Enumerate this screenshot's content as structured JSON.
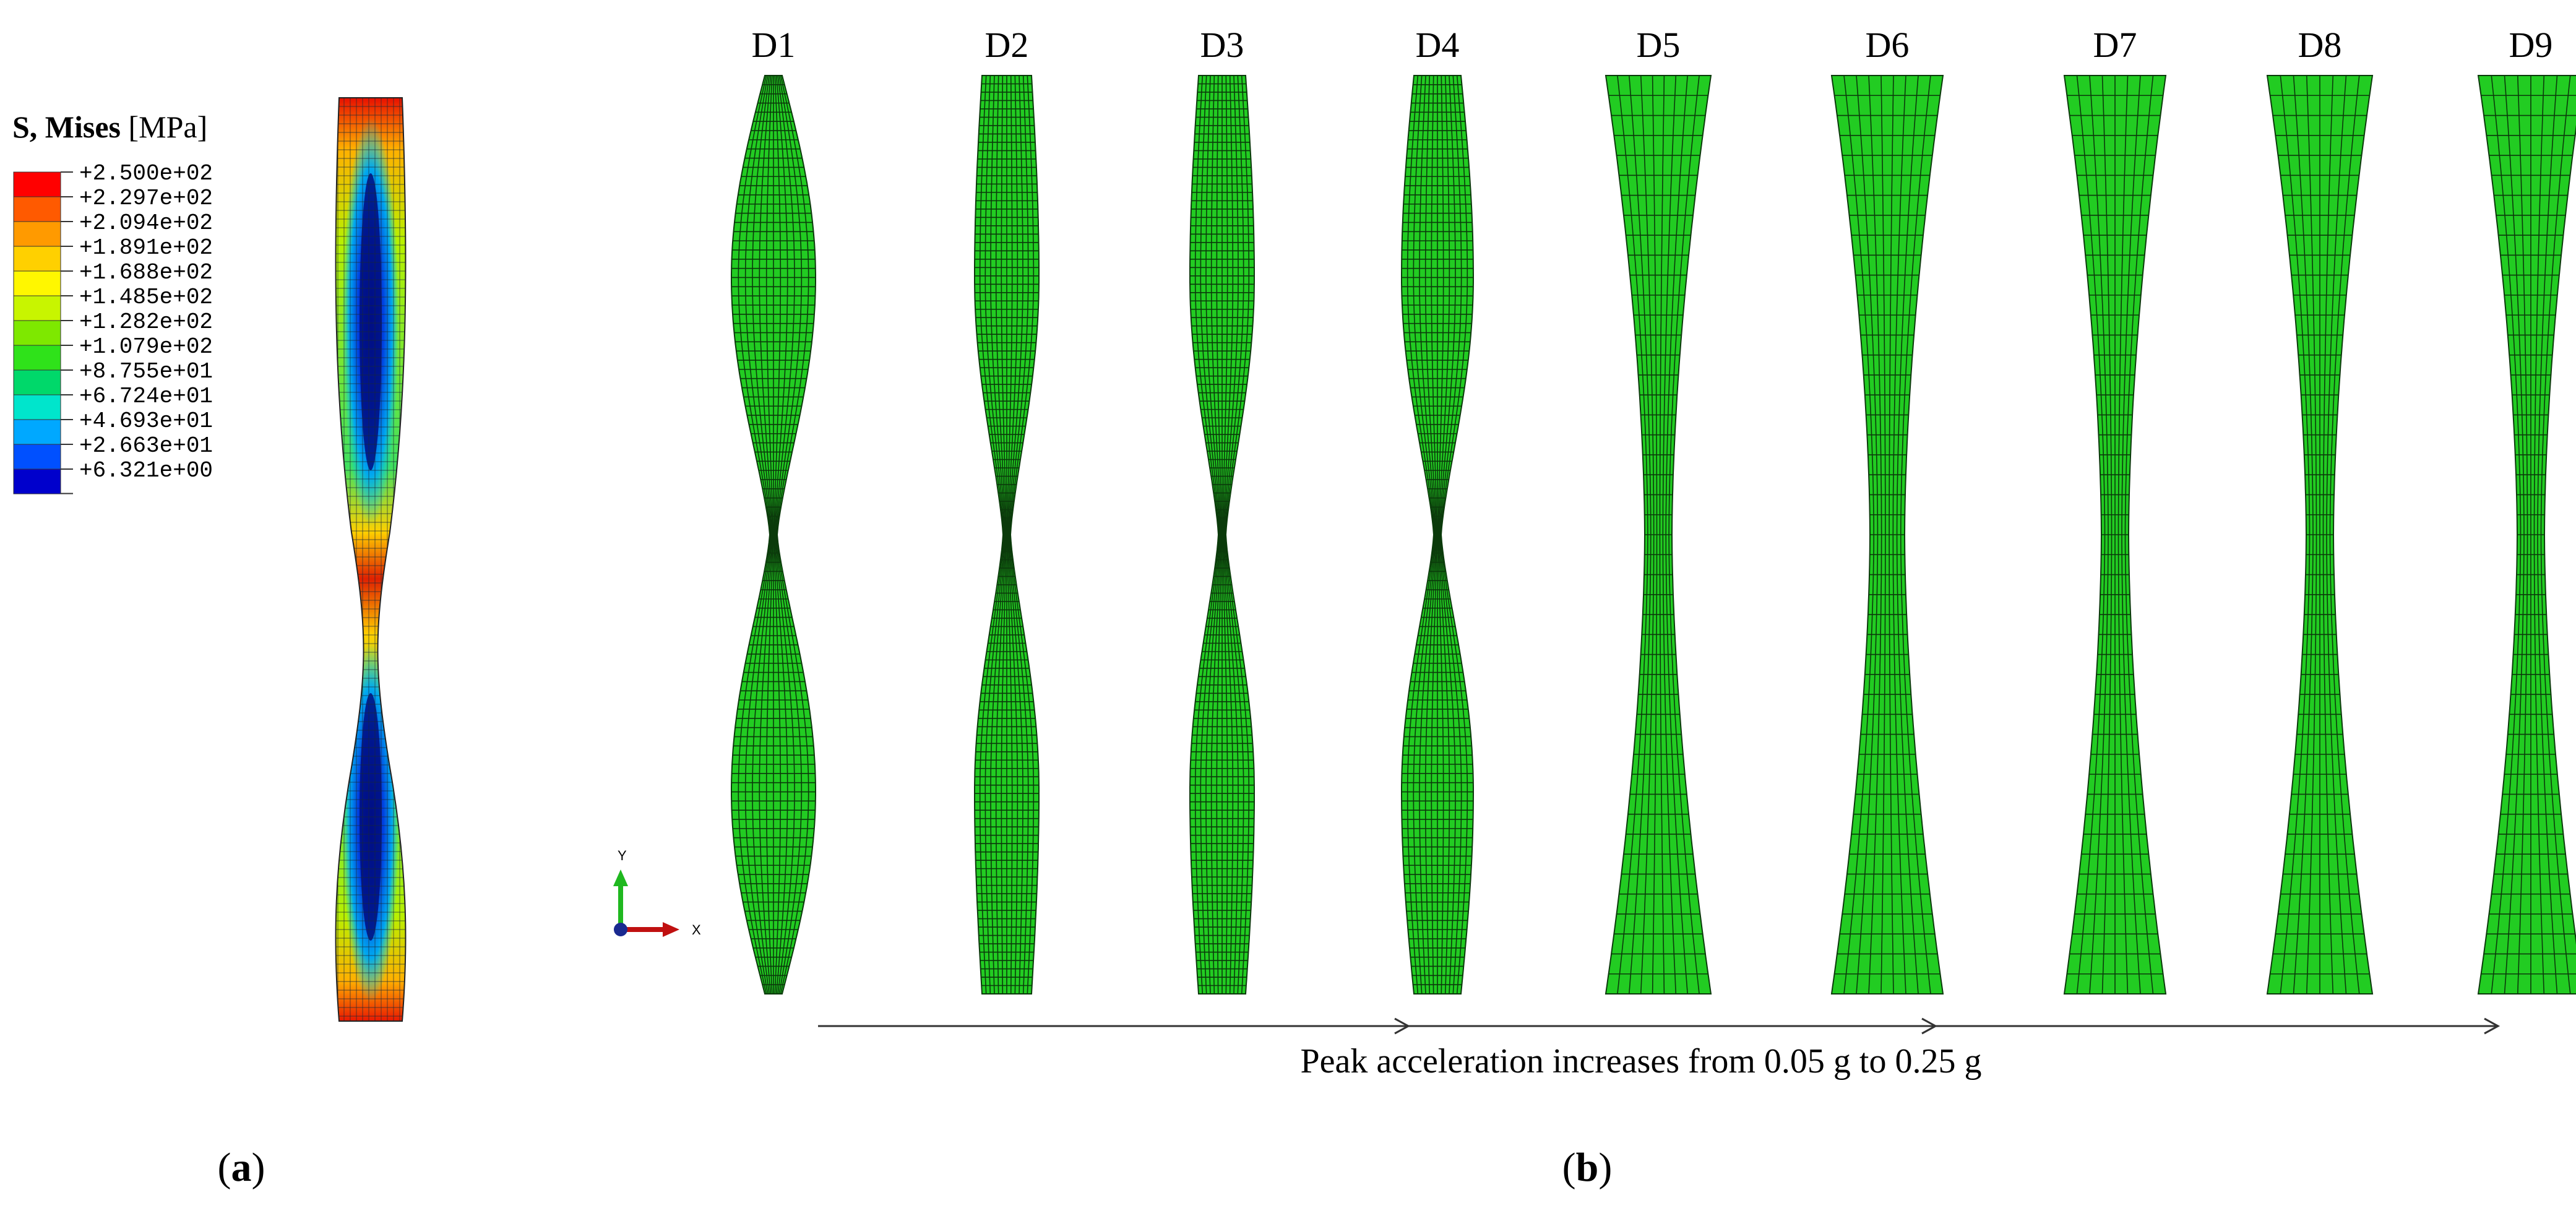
{
  "legend": {
    "title_bold": "S, Mises",
    "title_unit": "[MPa]",
    "entries": [
      {
        "label": "+2.500e+02",
        "color": "#ff0000"
      },
      {
        "label": "+2.297e+02",
        "color": "#ff5a00"
      },
      {
        "label": "+2.094e+02",
        "color": "#ff9a00"
      },
      {
        "label": "+1.891e+02",
        "color": "#ffd000"
      },
      {
        "label": "+1.688e+02",
        "color": "#fff700"
      },
      {
        "label": "+1.485e+02",
        "color": "#c8f500"
      },
      {
        "label": "+1.282e+02",
        "color": "#7ee800"
      },
      {
        "label": "+1.079e+02",
        "color": "#2fe21a"
      },
      {
        "label": "+8.755e+01",
        "color": "#00d86a"
      },
      {
        "label": "+6.724e+01",
        "color": "#00e5cc"
      },
      {
        "label": "+4.693e+01",
        "color": "#00a8ff"
      },
      {
        "label": "+2.663e+01",
        "color": "#0050ff"
      },
      {
        "label": "+6.321e+00",
        "color": "#0000cc"
      }
    ]
  },
  "axes_triad": {
    "y_label": "Y",
    "x_label": "X"
  },
  "specimens": [
    {
      "label": "D1"
    },
    {
      "label": "D2"
    },
    {
      "label": "D3"
    },
    {
      "label": "D4"
    },
    {
      "label": "D5"
    },
    {
      "label": "D6"
    },
    {
      "label": "D7"
    },
    {
      "label": "D8"
    },
    {
      "label": "D9"
    }
  ],
  "mesh_colors": {
    "fill": "#22cc22",
    "line": "#0b3a0b"
  },
  "arrow_caption": "Peak acceleration increases from 0.05 g to 0.25 g",
  "panel_labels": {
    "a": "a",
    "b": "b"
  }
}
